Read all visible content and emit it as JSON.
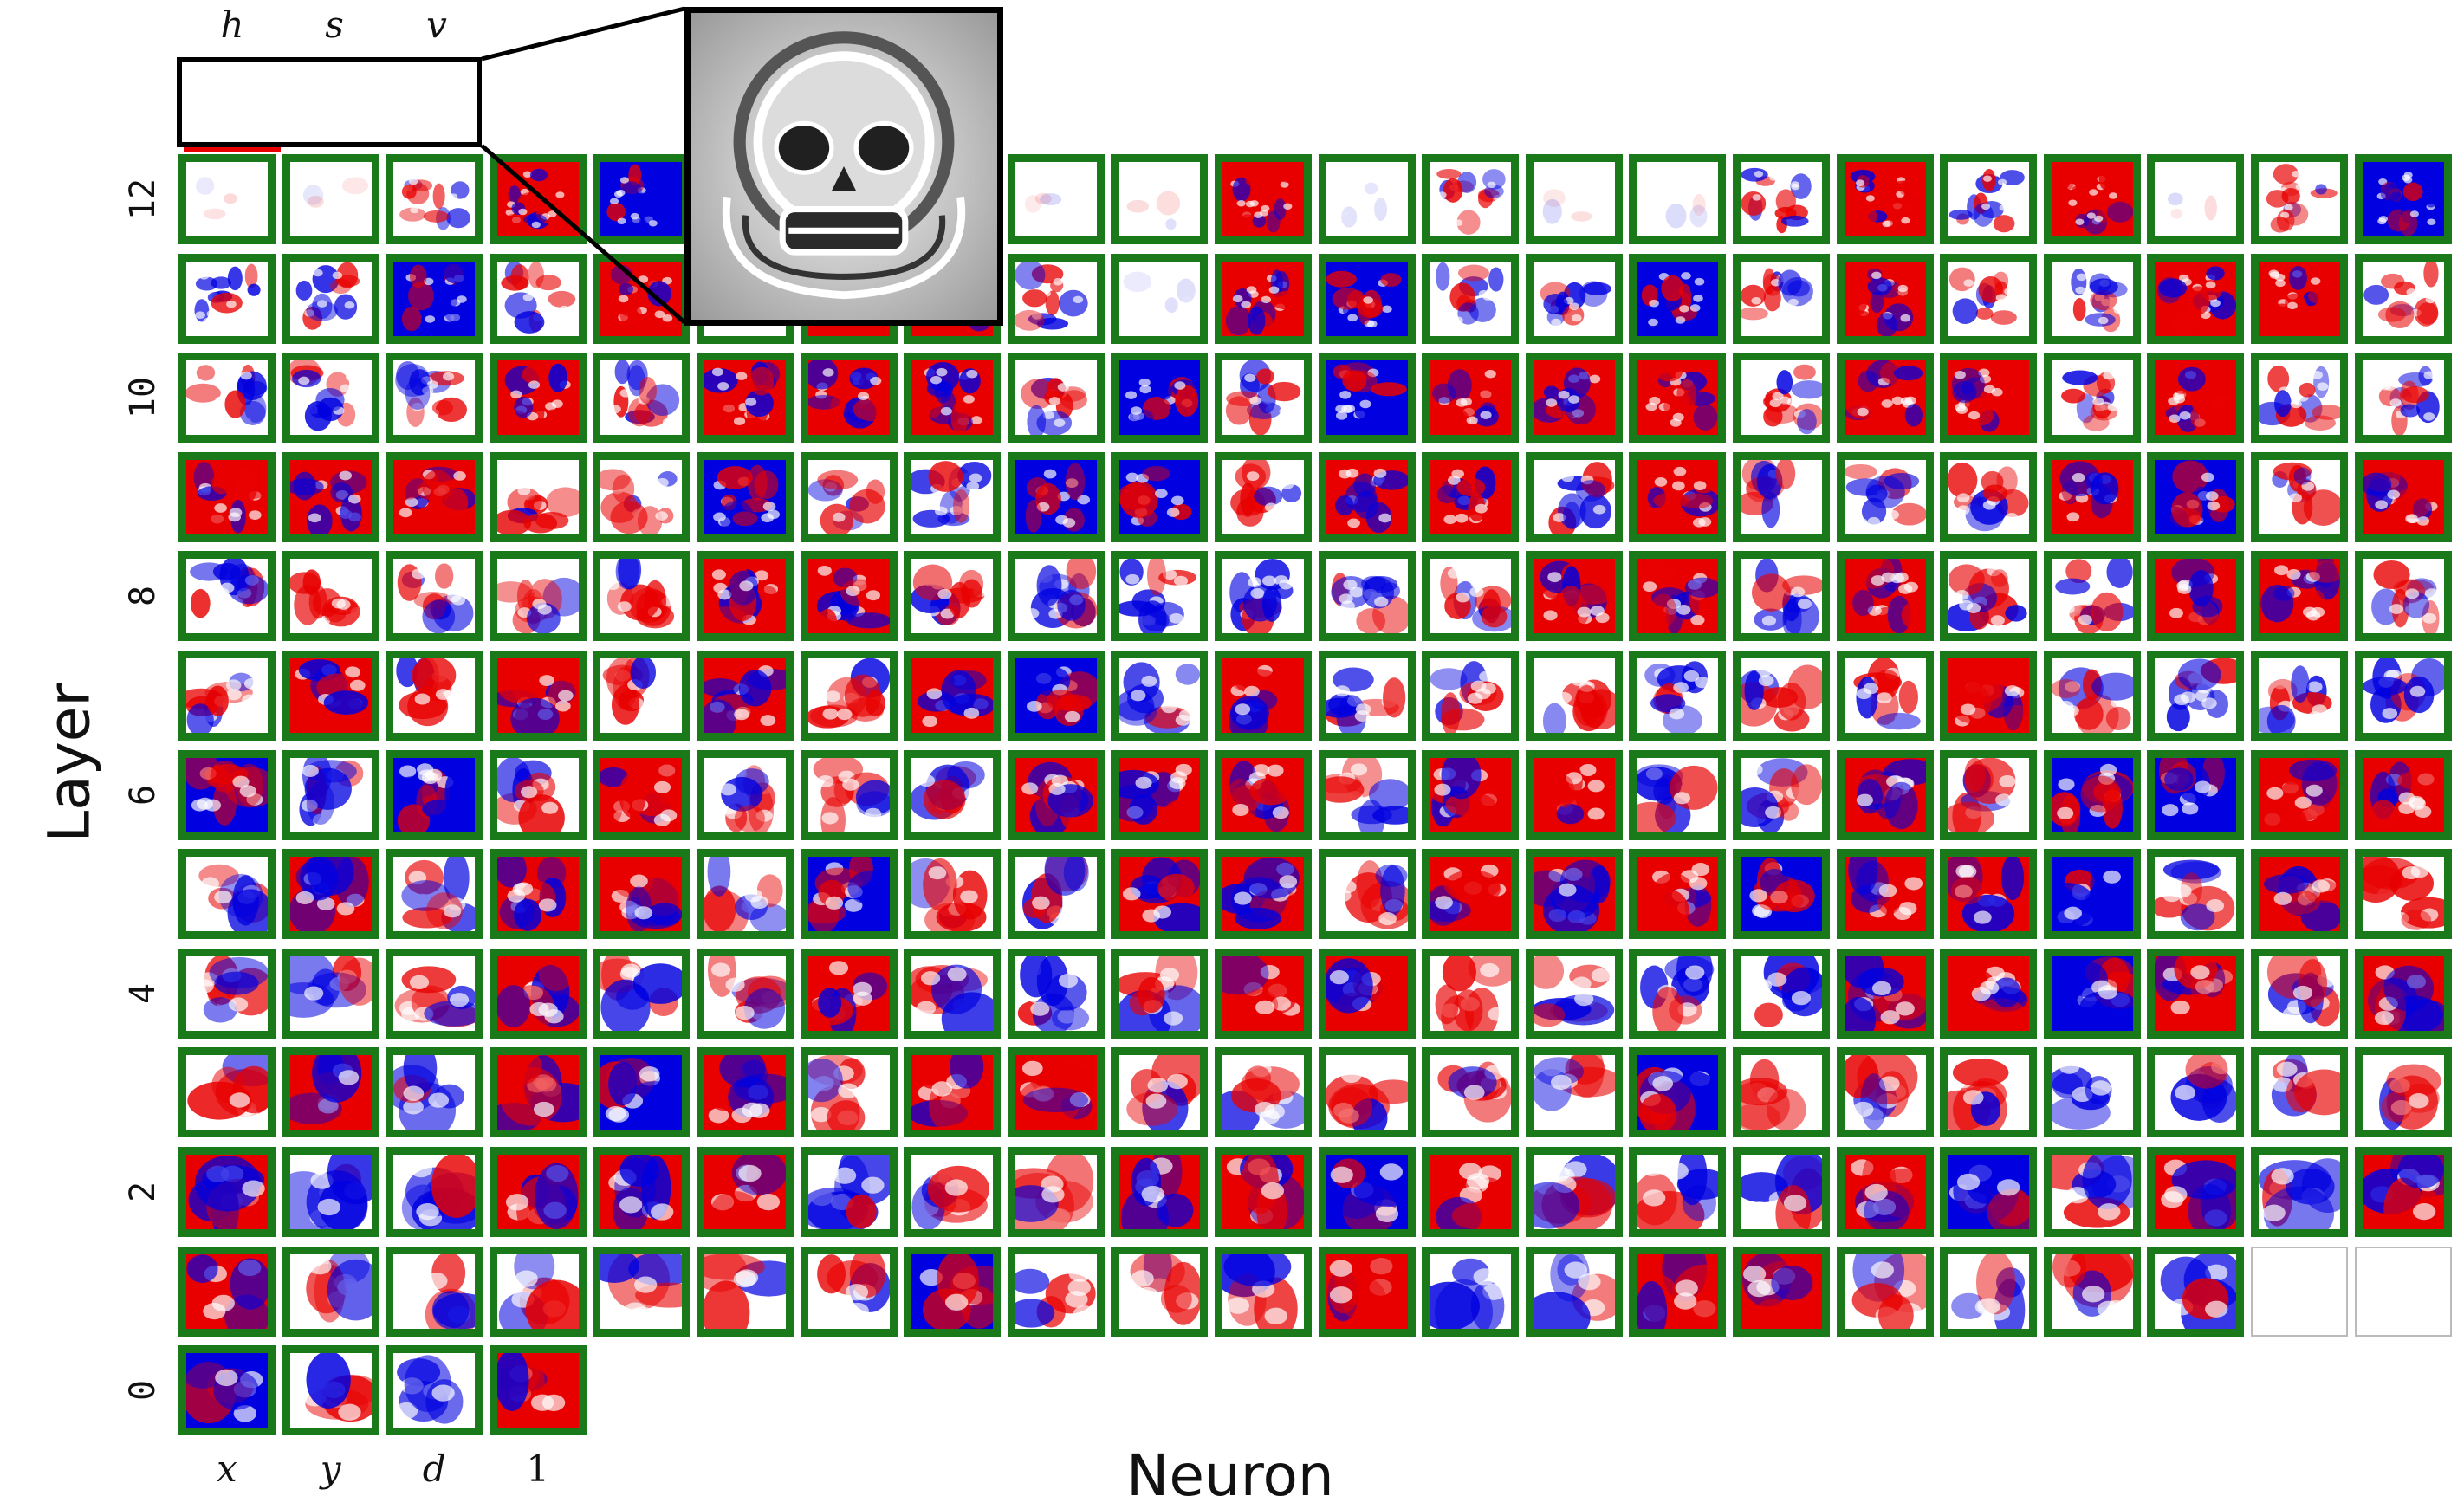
{
  "axes": {
    "x_title": "Neuron",
    "y_title": "Layer"
  },
  "layer_labels": [
    "12",
    "10",
    "8",
    "6",
    "4",
    "2",
    "0"
  ],
  "input_labels": [
    "x",
    "y",
    "d",
    "1"
  ],
  "output_labels": [
    "h",
    "s",
    "v"
  ],
  "colors": {
    "frame": "#1a7a1a",
    "positive": "#e80000",
    "negative": "#0000e0",
    "zero": "#ffffff",
    "inactive_border": "#bbbbbb"
  },
  "grid": {
    "neurons_per_layer": 22,
    "hidden_layers": 12,
    "layer1_inactive_neurons": [
      21,
      22
    ]
  }
}
